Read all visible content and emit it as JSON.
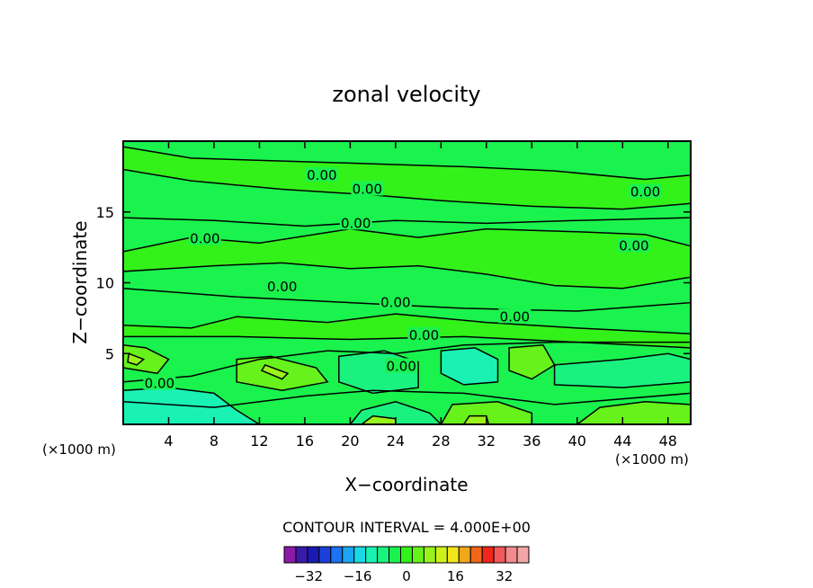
{
  "chart_data": {
    "type": "heatmap",
    "title": "zonal velocity",
    "xlabel": "X−coordinate",
    "ylabel": "Z−coordinate",
    "x_unit_left": "(×1000 m)",
    "x_unit_right": "(×1000 m)",
    "xlim": [
      0,
      50
    ],
    "ylim": [
      0,
      20
    ],
    "x_ticks": [
      4,
      8,
      12,
      16,
      20,
      24,
      28,
      32,
      36,
      40,
      44,
      48
    ],
    "y_ticks": [
      5,
      10,
      15
    ],
    "contour_interval_text": "CONTOUR INTERVAL = 4.000E+00",
    "contour_labels": [
      {
        "text": "0.00",
        "x": 17.5,
        "y": 17.6
      },
      {
        "text": "0.00",
        "x": 21.5,
        "y": 16.6
      },
      {
        "text": "0.00",
        "x": 46.0,
        "y": 16.4
      },
      {
        "text": "0.00",
        "x": 20.5,
        "y": 14.2
      },
      {
        "text": "0.00",
        "x": 7.2,
        "y": 13.1
      },
      {
        "text": "0.00",
        "x": 45.0,
        "y": 12.6
      },
      {
        "text": "0.00",
        "x": 14.0,
        "y": 9.7
      },
      {
        "text": "0.00",
        "x": 24.0,
        "y": 8.6
      },
      {
        "text": "0.00",
        "x": 34.5,
        "y": 7.6
      },
      {
        "text": "0.00",
        "x": 26.5,
        "y": 6.3
      },
      {
        "text": "0.00",
        "x": 24.5,
        "y": 4.1
      },
      {
        "text": "0.00",
        "x": 3.2,
        "y": 2.9
      }
    ],
    "colorbar": {
      "levels": [
        -36,
        -32,
        -28,
        -24,
        -20,
        -16,
        -12,
        -8,
        -4,
        0,
        4,
        8,
        12,
        16,
        20,
        24,
        28,
        32,
        36
      ],
      "tick_labels": [
        "−32",
        "−16",
        "0",
        "16",
        "32"
      ],
      "tick_values": [
        -32,
        -16,
        0,
        16,
        32
      ],
      "colors": [
        "#8c1aa6",
        "#3a1aa6",
        "#1a1ab3",
        "#1a40d9",
        "#1a73f2",
        "#1aa6f2",
        "#1ad9e6",
        "#1af2b3",
        "#1af280",
        "#1af24d",
        "#33f21a",
        "#66f21a",
        "#99f21a",
        "#ccf21a",
        "#f2e61a",
        "#f2a61a",
        "#f2661a",
        "#f2261a",
        "#f25959",
        "#f28c8c",
        "#f2a6a6"
      ]
    },
    "grid": false
  }
}
